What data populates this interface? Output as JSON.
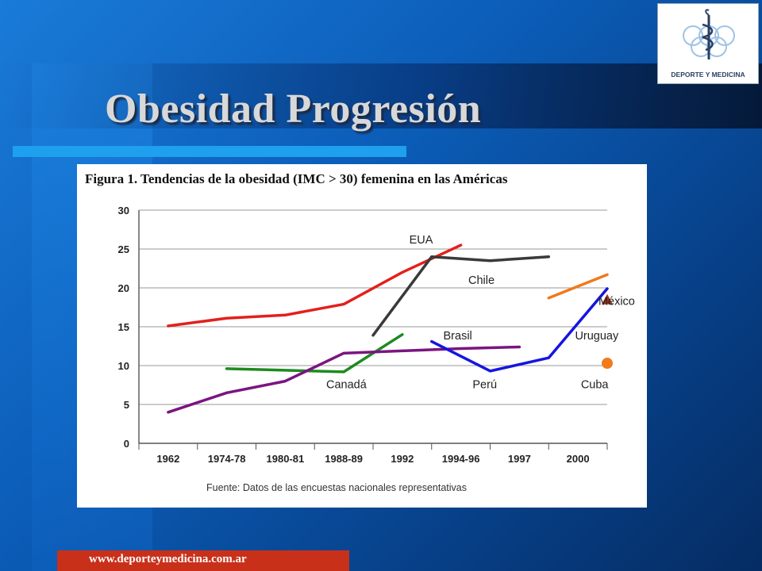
{
  "slide": {
    "title_part1": "Obesidad",
    "title_part2": "Progresión",
    "logo_text": "DEPORTE Y MEDICINA",
    "footer_url": "www.deporteymedicina.com.ar"
  },
  "chart_data": {
    "type": "line",
    "title": "Figura 1. Tendencias de la obesidad (IMC > 30) femenina en las Américas",
    "source": "Fuente: Datos de las encuestas nacionales representativas",
    "categories": [
      "1962",
      "1974-78",
      "1980-81",
      "1988-89",
      "1992",
      "1994-96",
      "1997",
      "2000"
    ],
    "yticks": [
      "0",
      "5",
      "10",
      "15",
      "20",
      "25",
      "30"
    ],
    "ylim": [
      0,
      30
    ],
    "grid": true,
    "series": [
      {
        "name": "EUA",
        "color": "#e3201b",
        "x": [
          0,
          1,
          2,
          3,
          4,
          5
        ],
        "values": [
          15.1,
          16.1,
          16.5,
          17.9,
          22.0,
          25.5
        ]
      },
      {
        "name": "Chile",
        "color": "#3a3a3a",
        "x": [
          3.5,
          4.5,
          5.5,
          6.5
        ],
        "values": [
          13.9,
          24.0,
          23.5,
          24.0
        ]
      },
      {
        "name": "Canadá",
        "color": "#1f8a1f",
        "x": [
          1,
          2,
          3,
          4
        ],
        "values": [
          9.6,
          9.4,
          9.2,
          14.0
        ]
      },
      {
        "name": "Brasil",
        "color": "#7a1580",
        "x": [
          0,
          1,
          2,
          3,
          4,
          5,
          6
        ],
        "values": [
          4.0,
          6.5,
          8.0,
          11.6,
          11.9,
          12.2,
          12.4
        ]
      },
      {
        "name": "Perú",
        "color": "#1515e0",
        "x": [
          4.5,
          5.5,
          6.5,
          7.5
        ],
        "values": [
          13.1,
          9.3,
          11.0,
          19.9
        ]
      },
      {
        "name": "Uruguay",
        "color": "#f07a1c",
        "x": [
          6.5,
          7.5
        ],
        "values": [
          18.7,
          21.7
        ]
      },
      {
        "name": "México",
        "color": "#a0351e",
        "marker": "triangle",
        "x": [
          7.5
        ],
        "values": [
          18.5
        ]
      },
      {
        "name": "Cuba",
        "color": "#f07a1c",
        "marker": "circle",
        "x": [
          7.5
        ],
        "values": [
          10.3
        ]
      }
    ]
  }
}
